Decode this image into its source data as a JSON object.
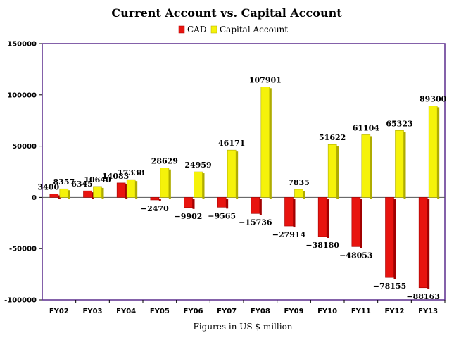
{
  "chart_data": {
    "type": "bar",
    "title": "Current Account vs. Capital Account",
    "xlabel": "Figures in US $ million",
    "ylabel": "",
    "ylim": [
      -100000,
      150000
    ],
    "yticks": [
      150000,
      100000,
      50000,
      0,
      -50000,
      -100000
    ],
    "grid": false,
    "legend_position": "top-center",
    "categories": [
      "FY02",
      "FY03",
      "FY04",
      "FY05",
      "FY06",
      "FY07",
      "FY08",
      "FY09",
      "FY10",
      "FY11",
      "FY12",
      "FY13"
    ],
    "series": [
      {
        "name": "CAD",
        "color": "#e8140f",
        "values": [
          3400,
          6345,
          14083,
          -2470,
          -9902,
          -9565,
          -15736,
          -27914,
          -38180,
          -48053,
          -78155,
          -88163
        ]
      },
      {
        "name": "Capital Account",
        "color": "#f5f20a",
        "values": [
          8357,
          10640,
          17338,
          28629,
          24959,
          46171,
          107901,
          7835,
          51622,
          61104,
          65323,
          89300
        ]
      }
    ],
    "plot_border_color": "#5b2d8e"
  }
}
